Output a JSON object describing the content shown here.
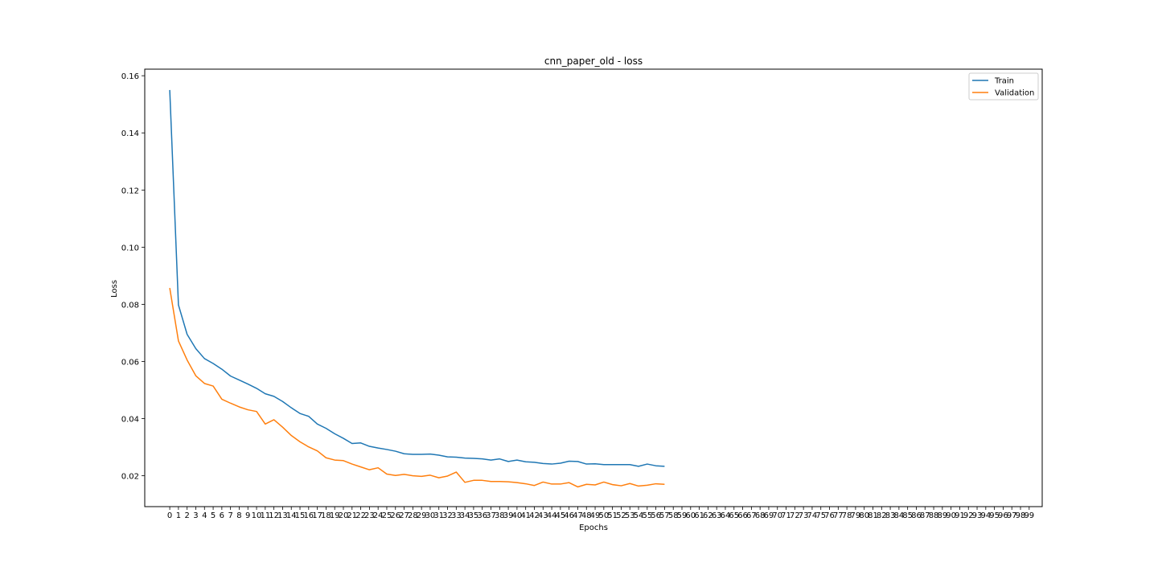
{
  "chart_data": {
    "type": "line",
    "title": "cnn_paper_old - loss",
    "xlabel": "Epochs",
    "ylabel": "Loss",
    "xlim": [
      -2.88,
      100.5
    ],
    "ylim": [
      0.0092,
      0.1623
    ],
    "xticks_count": 100,
    "yticks": [
      0.02,
      0.04,
      0.06,
      0.08,
      0.1,
      0.12,
      0.14,
      0.16
    ],
    "ytick_labels": [
      "0.02",
      "0.04",
      "0.06",
      "0.08",
      "0.10",
      "0.12",
      "0.14",
      "0.16"
    ],
    "grid": false,
    "legend_position": "top-right",
    "series": [
      {
        "name": "Train",
        "color": "#1f77b4",
        "values": [
          0.155,
          0.0798,
          0.0695,
          0.0645,
          0.061,
          0.0593,
          0.0573,
          0.0549,
          0.0535,
          0.0521,
          0.0506,
          0.0487,
          0.0478,
          0.046,
          0.0438,
          0.0418,
          0.0408,
          0.0381,
          0.0366,
          0.0347,
          0.0331,
          0.0313,
          0.0315,
          0.0303,
          0.0297,
          0.0292,
          0.0286,
          0.0277,
          0.0275,
          0.0275,
          0.0276,
          0.0272,
          0.0266,
          0.0265,
          0.0262,
          0.0261,
          0.0259,
          0.0255,
          0.0259,
          0.025,
          0.0255,
          0.0249,
          0.0247,
          0.0243,
          0.0241,
          0.0244,
          0.0251,
          0.025,
          0.0241,
          0.0242,
          0.0239,
          0.0239,
          0.0239,
          0.0239,
          0.0233,
          0.0241,
          0.0235,
          0.0233
        ]
      },
      {
        "name": "Validation",
        "color": "#ff7f0e",
        "values": [
          0.0857,
          0.0672,
          0.0605,
          0.055,
          0.0523,
          0.0514,
          0.0468,
          0.0454,
          0.0441,
          0.0431,
          0.0425,
          0.0381,
          0.0396,
          0.037,
          0.0341,
          0.0319,
          0.0301,
          0.0287,
          0.0263,
          0.0255,
          0.0253,
          0.0241,
          0.0231,
          0.0221,
          0.0228,
          0.0206,
          0.0201,
          0.0205,
          0.02,
          0.0198,
          0.0202,
          0.0193,
          0.0199,
          0.0213,
          0.0177,
          0.0184,
          0.0184,
          0.018,
          0.018,
          0.0179,
          0.0176,
          0.0172,
          0.0166,
          0.0178,
          0.0171,
          0.0171,
          0.0176,
          0.0161,
          0.017,
          0.0168,
          0.0178,
          0.0169,
          0.0165,
          0.0173,
          0.0164,
          0.0167,
          0.0172,
          0.017
        ]
      }
    ]
  }
}
